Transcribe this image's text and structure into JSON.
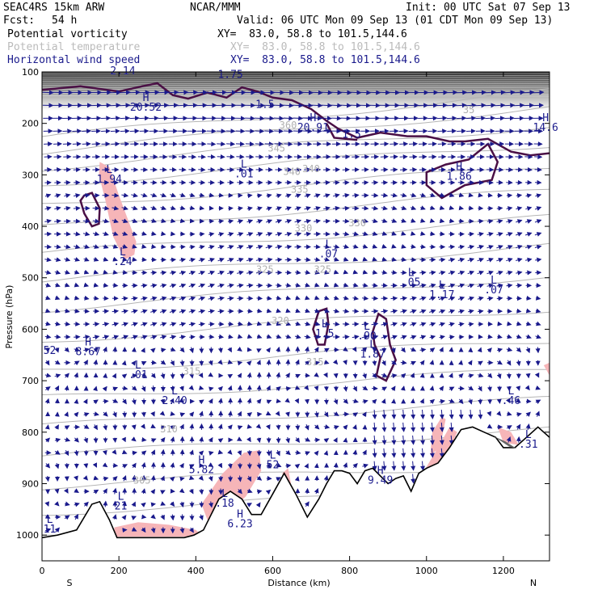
{
  "header": {
    "model": "SEAC4RS 15km ARW",
    "center": "NCAR/MMM",
    "init": "Init: 00 UTC Sat 07 Sep 13",
    "fcst_label": "Fcst:",
    "fcst_value": "54 h",
    "valid": "Valid: 06 UTC Mon 09 Sep 13 (01 CDT Mon 09 Sep 13)"
  },
  "fields": [
    {
      "name": "Potential vorticity",
      "xy": "XY=  83.0, 58.8 to 101.5,144.6",
      "color": "#000000"
    },
    {
      "name": "Potential temperature",
      "xy": "XY=  83.0, 58.8 to 101.5,144.6",
      "color": "#bbbbbb"
    },
    {
      "name": "Horizontal wind speed",
      "xy": "XY=  83.0, 58.8 to 101.5,144.6",
      "color": "#1a1a8c"
    }
  ],
  "chart_data": {
    "type": "cross-section",
    "xlabel": "Distance (km)",
    "ylabel": "Pressure (hPa)",
    "x_ticks": [
      "0",
      "200",
      "400",
      "600",
      "800",
      "1000",
      "1200"
    ],
    "y_ticks": [
      "100",
      "200",
      "300",
      "400",
      "500",
      "600",
      "700",
      "800",
      "900",
      "1000"
    ],
    "xlim": [
      0,
      1320
    ],
    "ylim": [
      1050,
      100
    ],
    "left_end": "S",
    "right_end": "N",
    "theta_contours": [
      {
        "label": "305",
        "x": 260,
        "p": 900
      },
      {
        "label": "310",
        "x": 330,
        "p": 800
      },
      {
        "label": "315",
        "x": 390,
        "p": 688
      },
      {
        "label": "315",
        "x": 710,
        "p": 670
      },
      {
        "label": "320",
        "x": 620,
        "p": 590
      },
      {
        "label": "325",
        "x": 580,
        "p": 490
      },
      {
        "label": "325",
        "x": 730,
        "p": 490
      },
      {
        "label": "330",
        "x": 680,
        "p": 410
      },
      {
        "label": "330",
        "x": 820,
        "p": 400
      },
      {
        "label": "335",
        "x": 670,
        "p": 335
      },
      {
        "label": "340",
        "x": 650,
        "p": 300
      },
      {
        "label": "340",
        "x": 700,
        "p": 295
      },
      {
        "label": "345",
        "x": 610,
        "p": 255
      },
      {
        "label": "360",
        "x": 640,
        "p": 210
      },
      {
        "label": "35",
        "x": 1110,
        "p": 180
      }
    ],
    "extrema": [
      {
        "kind": "H",
        "value": "20.52",
        "x": 270,
        "p": 175
      },
      {
        "kind": "H",
        "value": "20.91",
        "x": 705,
        "p": 215
      },
      {
        "kind": "H",
        "value": "14.6",
        "x": 1310,
        "p": 215
      },
      {
        "kind": "H",
        "value": "1.86",
        "x": 1085,
        "p": 310
      },
      {
        "kind": "L",
        "value": "1.94",
        "x": 175,
        "p": 315
      },
      {
        "kind": "L",
        "value": ".01",
        "x": 525,
        "p": 305
      },
      {
        "kind": "L",
        "value": ".24",
        "x": 210,
        "p": 475
      },
      {
        "kind": "L",
        "value": ".07",
        "x": 745,
        "p": 460
      },
      {
        "kind": "L",
        "value": ".05",
        "x": 960,
        "p": 515
      },
      {
        "kind": "L",
        "value": "1.17",
        "x": 1040,
        "p": 540
      },
      {
        "kind": "L",
        "value": ".07",
        "x": 1175,
        "p": 530
      },
      {
        "kind": "L",
        "value": "1.5",
        "x": 735,
        "p": 615
      },
      {
        "kind": "L",
        "value": ".90",
        "x": 845,
        "p": 620
      },
      {
        "kind": "L",
        "value": "1.87",
        "x": 860,
        "p": 655
      },
      {
        "kind": "H",
        "value": "8.67",
        "x": 120,
        "p": 650
      },
      {
        "kind": "L",
        "value": ".01",
        "x": 250,
        "p": 695
      },
      {
        "kind": "L",
        "value": "2.40",
        "x": 345,
        "p": 745
      },
      {
        "kind": "L",
        "value": ".46",
        "x": 1220,
        "p": 745
      },
      {
        "kind": "L",
        "value": ".31",
        "x": 1265,
        "p": 830
      },
      {
        "kind": "L",
        "value": "52",
        "x": 600,
        "p": 870
      },
      {
        "kind": "H",
        "value": "5.82",
        "x": 415,
        "p": 880
      },
      {
        "kind": "H",
        "value": "9.49",
        "x": 880,
        "p": 900
      },
      {
        "kind": "L",
        "value": "21",
        "x": 205,
        "p": 950
      },
      {
        "kind": "L",
        "value": ".18",
        "x": 475,
        "p": 945
      },
      {
        "kind": "H",
        "value": "6.23",
        "x": 515,
        "p": 985
      },
      {
        "kind": "L",
        "value": "11",
        "x": 20,
        "p": 995
      },
      {
        "kind": "",
        "value": "52",
        "x": 20,
        "p": 648
      },
      {
        "kind": "",
        "value": "2.14",
        "x": 210,
        "p": 105
      },
      {
        "kind": "",
        "value": "1.75",
        "x": 490,
        "p": 112
      },
      {
        "kind": "",
        "value": "1.5",
        "x": 580,
        "p": 170
      },
      {
        "kind": "",
        "value": "1.5",
        "x": 805,
        "p": 228
      }
    ],
    "terrain_x": [
      0,
      40,
      90,
      130,
      150,
      175,
      195,
      210,
      230,
      260,
      300,
      340,
      370,
      395,
      420,
      440,
      460,
      490,
      520,
      545,
      570,
      600,
      630,
      660,
      690,
      720,
      740,
      760,
      780,
      800,
      820,
      840,
      860,
      880,
      900,
      920,
      940,
      960,
      980,
      1000,
      1030,
      1060,
      1090,
      1120,
      1150,
      1180,
      1200,
      1230,
      1260,
      1290,
      1320
    ],
    "terrain_p": [
      1005,
      1000,
      990,
      940,
      935,
      970,
      1005,
      1005,
      1005,
      1005,
      1005,
      1005,
      1005,
      1000,
      990,
      960,
      930,
      915,
      930,
      960,
      960,
      920,
      880,
      920,
      965,
      930,
      900,
      875,
      875,
      880,
      900,
      875,
      870,
      885,
      900,
      890,
      885,
      915,
      880,
      870,
      860,
      830,
      795,
      790,
      800,
      810,
      830,
      830,
      810,
      790,
      810
    ]
  }
}
